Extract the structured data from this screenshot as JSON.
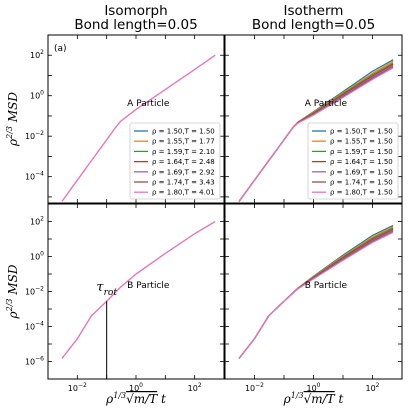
{
  "chart_data": [
    {
      "type": "line",
      "panel": "top-left",
      "title": "Isomorph\nBond length=0.05",
      "panel_tag": "(a)",
      "annotation": "A Particle",
      "xscale": "log",
      "yscale": "log",
      "xlim": [
        0.001,
        1000
      ],
      "ylim": [
        5e-06,
        1000
      ],
      "ylabel": "ρ^{2/3} MSD",
      "yticks": [
        "10^{-4}",
        "10^{-2}",
        "10^{0}",
        "10^{2}"
      ],
      "legend_position": "lower-right",
      "legend": [
        "ρ = 1.50,T = 1.50",
        "ρ = 1.55,T = 1.77",
        "ρ = 1.59,T = 2.10",
        "ρ = 1.64,T = 2.48",
        "ρ = 1.69,T = 2.92",
        "ρ = 1.74,T = 3.43",
        "ρ = 1.80,T = 4.01"
      ],
      "series": [
        {
          "x": [
            0.003,
            0.01,
            0.03,
            0.1,
            0.2,
            0.3,
            1,
            10,
            100,
            500
          ],
          "y": [
            6e-06,
            6.7e-05,
            0.0006,
            0.0066,
            0.027,
            0.055,
            0.21,
            2,
            20,
            100
          ]
        }
      ]
    },
    {
      "type": "line",
      "panel": "top-right",
      "title": "Isotherm\nBond length=0.05",
      "annotation": "A Particle",
      "xscale": "log",
      "yscale": "log",
      "xlim": [
        0.001,
        1000
      ],
      "ylim": [
        5e-06,
        1000
      ],
      "legend_position": "lower-right",
      "legend": [
        "ρ = 1.50,T = 1.50",
        "ρ = 1.55,T = 1.50",
        "ρ = 1.59,T = 1.50",
        "ρ = 1.64,T = 1.50",
        "ρ = 1.69,T = 1.50",
        "ρ = 1.74,T = 1.50",
        "ρ = 1.80,T = 1.50"
      ],
      "series": [
        {
          "x": [
            0.003,
            0.01,
            0.03,
            0.1,
            0.2,
            0.3,
            1,
            10,
            100,
            500
          ],
          "y": [
            6e-06,
            6.7e-05,
            0.0006,
            0.0066,
            0.027,
            0.05,
            0.16,
            1.6,
            16,
            60
          ]
        },
        {
          "x": [
            0.003,
            0.01,
            0.03,
            0.1,
            0.2,
            0.3,
            1,
            10,
            100,
            500
          ],
          "y": [
            6e-06,
            6.7e-05,
            0.0006,
            0.0066,
            0.027,
            0.05,
            0.15,
            1.4,
            13,
            50
          ]
        },
        {
          "x": [
            0.003,
            0.01,
            0.03,
            0.1,
            0.2,
            0.3,
            1,
            10,
            100,
            500
          ],
          "y": [
            6e-06,
            6.7e-05,
            0.0006,
            0.0066,
            0.027,
            0.049,
            0.14,
            1.25,
            11,
            42
          ]
        },
        {
          "x": [
            0.003,
            0.01,
            0.03,
            0.1,
            0.2,
            0.3,
            1,
            10,
            100,
            500
          ],
          "y": [
            6e-06,
            6.7e-05,
            0.0006,
            0.0066,
            0.027,
            0.048,
            0.13,
            1.1,
            9.5,
            36
          ]
        },
        {
          "x": [
            0.003,
            0.01,
            0.03,
            0.1,
            0.2,
            0.3,
            1,
            10,
            100,
            500
          ],
          "y": [
            6e-06,
            6.7e-05,
            0.0006,
            0.0066,
            0.027,
            0.047,
            0.12,
            1.0,
            8.2,
            31
          ]
        },
        {
          "x": [
            0.003,
            0.01,
            0.03,
            0.1,
            0.2,
            0.3,
            1,
            10,
            100,
            500
          ],
          "y": [
            6e-06,
            6.7e-05,
            0.0006,
            0.0066,
            0.027,
            0.046,
            0.115,
            0.9,
            7.2,
            27
          ]
        },
        {
          "x": [
            0.003,
            0.01,
            0.03,
            0.1,
            0.2,
            0.3,
            1,
            10,
            100,
            500
          ],
          "y": [
            6e-06,
            6.7e-05,
            0.0006,
            0.0066,
            0.027,
            0.045,
            0.11,
            0.82,
            6.3,
            24
          ]
        }
      ]
    },
    {
      "type": "line",
      "panel": "bottom-left",
      "annotation": "B Particle",
      "marker_label": "τ_{rot}",
      "marker_x": 0.1,
      "xscale": "log",
      "yscale": "log",
      "xlim": [
        0.001,
        1000
      ],
      "ylim": [
        1e-07,
        1000
      ],
      "xlabel": "ρ^{1/3}√(m/T) t",
      "ylabel": "ρ^{2/3} MSD",
      "xticks": [
        "10^{-2}",
        "10^{0}",
        "10^{2}"
      ],
      "yticks": [
        "10^{-6}",
        "10^{-4}",
        "10^{-2}",
        "10^{0}",
        "10^{2}"
      ],
      "series": [
        {
          "x": [
            0.003,
            0.01,
            0.03,
            0.1,
            0.3,
            1,
            10,
            100,
            500
          ],
          "y": [
            1.5e-06,
            2e-05,
            0.0004,
            0.0028,
            0.018,
            0.1,
            1.5,
            20,
            100
          ]
        }
      ]
    },
    {
      "type": "line",
      "panel": "bottom-right",
      "annotation": "B Particle",
      "xscale": "log",
      "yscale": "log",
      "xlim": [
        0.001,
        1000
      ],
      "ylim": [
        1e-07,
        1000
      ],
      "xlabel": "ρ^{1/3}√(m/T) t",
      "xticks": [
        "10^{-2}",
        "10^{0}",
        "10^{2}"
      ],
      "series": [
        {
          "x": [
            0.003,
            0.01,
            0.03,
            0.1,
            0.3,
            1,
            10,
            100,
            500
          ],
          "y": [
            1.5e-06,
            2e-05,
            0.0004,
            0.0028,
            0.016,
            0.075,
            1.2,
            16,
            60
          ]
        },
        {
          "x": [
            0.003,
            0.01,
            0.03,
            0.1,
            0.3,
            1,
            10,
            100,
            500
          ],
          "y": [
            1.5e-06,
            2e-05,
            0.0004,
            0.0028,
            0.0158,
            0.07,
            1.05,
            13,
            50
          ]
        },
        {
          "x": [
            0.003,
            0.01,
            0.03,
            0.1,
            0.3,
            1,
            10,
            100,
            500
          ],
          "y": [
            1.5e-06,
            2e-05,
            0.0004,
            0.0028,
            0.0155,
            0.066,
            0.92,
            11,
            42
          ]
        },
        {
          "x": [
            0.003,
            0.01,
            0.03,
            0.1,
            0.3,
            1,
            10,
            100,
            500
          ],
          "y": [
            1.5e-06,
            2e-05,
            0.0004,
            0.0028,
            0.0152,
            0.062,
            0.82,
            9.5,
            36
          ]
        },
        {
          "x": [
            0.003,
            0.01,
            0.03,
            0.1,
            0.3,
            1,
            10,
            100,
            500
          ],
          "y": [
            1.5e-06,
            2e-05,
            0.0004,
            0.0028,
            0.015,
            0.058,
            0.74,
            8.2,
            31
          ]
        },
        {
          "x": [
            0.003,
            0.01,
            0.03,
            0.1,
            0.3,
            1,
            10,
            100,
            500
          ],
          "y": [
            1.5e-06,
            2e-05,
            0.0004,
            0.0028,
            0.0147,
            0.055,
            0.67,
            7.2,
            27
          ]
        },
        {
          "x": [
            0.003,
            0.01,
            0.03,
            0.1,
            0.3,
            1,
            10,
            100,
            500
          ],
          "y": [
            1.5e-06,
            2e-05,
            0.0004,
            0.0028,
            0.0145,
            0.052,
            0.6,
            6.3,
            24
          ]
        }
      ]
    }
  ],
  "colors": [
    "#1f77b4",
    "#ff7f0e",
    "#2ca02c",
    "#d62728",
    "#9467bd",
    "#8c564b",
    "#e377c2"
  ]
}
